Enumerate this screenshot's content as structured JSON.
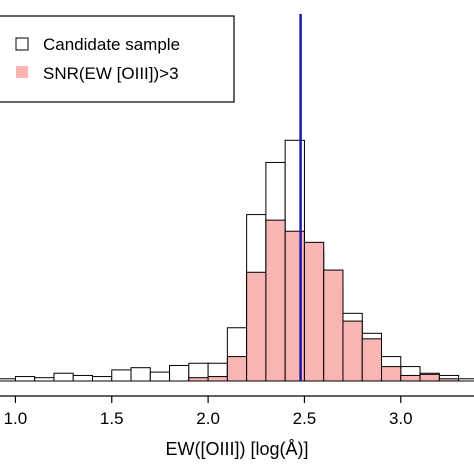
{
  "chart_data": {
    "type": "histogram",
    "xlabel": "EW([OIII]) [log(Å)]",
    "ylabel": "",
    "xlim": [
      0.92,
      3.38
    ],
    "x_ticks": [
      1.0,
      1.5,
      2.0,
      2.5,
      3.0
    ],
    "x_tick_labels": [
      "1.0",
      "1.5",
      "2.0",
      "2.5",
      "3.0"
    ],
    "bin_width": 0.1,
    "bin_left_edges": [
      0.9,
      1.0,
      1.1,
      1.2,
      1.3,
      1.4,
      1.5,
      1.6,
      1.7,
      1.8,
      1.9,
      2.0,
      2.1,
      2.2,
      2.3,
      2.4,
      2.5,
      2.6,
      2.7,
      2.8,
      2.9,
      3.0,
      3.1,
      3.2,
      3.3
    ],
    "y_scale_max": 320,
    "series": [
      {
        "name": "Candidate sample",
        "fill": "#ffffff",
        "stroke": "#000000",
        "values": [
          2,
          4,
          3,
          7,
          5,
          4,
          10,
          12,
          8,
          14,
          16,
          16,
          48,
          150,
          197,
          217,
          117,
          85,
          61,
          43,
          22,
          13,
          7,
          5,
          2
        ]
      },
      {
        "name": "SNR(EW [OIII])>3",
        "fill": "#f9b4b4",
        "stroke": "#000000",
        "values": [
          0,
          0,
          0,
          0,
          0,
          0,
          0,
          0,
          0,
          0,
          3,
          4,
          22,
          98,
          145,
          135,
          125,
          100,
          54,
          38,
          13,
          5,
          6,
          2,
          0
        ]
      }
    ],
    "reference_line": {
      "x": 2.48,
      "color": "#1a1aaa"
    },
    "legend": {
      "position": "top-left"
    }
  }
}
